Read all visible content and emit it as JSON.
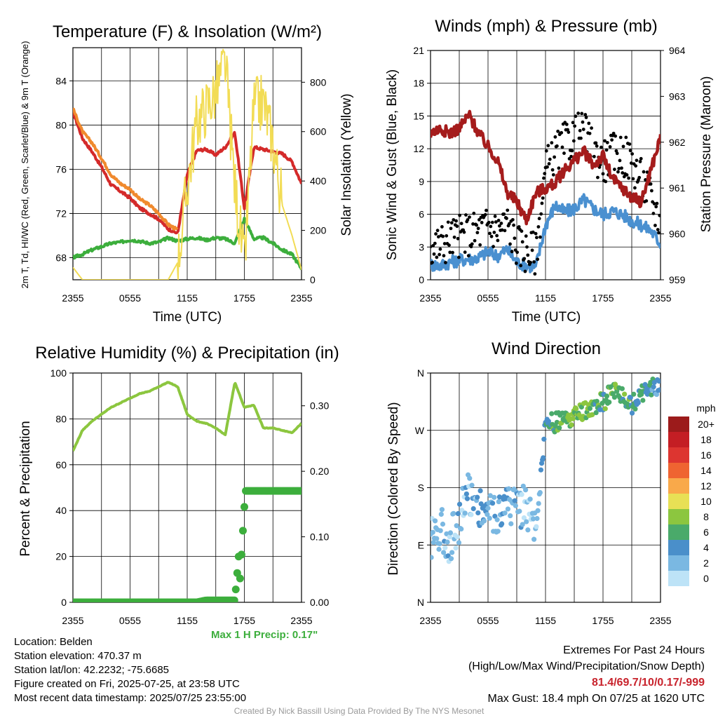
{
  "chart_data": [
    {
      "type": "line",
      "title": "Temperature (F) & Insolation (W/m²)",
      "xlabel": "Time (UTC)",
      "ylabel_left": "2m T, Td, HI/WC (Red, Green, Scarlet/Blue) & 9m T (Orange)",
      "ylabel_right": "Solar Insolation (Yellow)",
      "x_ticks": [
        "2355",
        "0555",
        "1155",
        "1755",
        "2355"
      ],
      "ylim": [
        66,
        87
      ],
      "y_ticks": [
        "68",
        "72",
        "76",
        "80",
        "84"
      ],
      "y2lim": [
        0,
        940
      ],
      "y2_ticks": [
        "0",
        "200",
        "400",
        "600",
        "800"
      ],
      "grid": true,
      "hours": [
        0,
        1,
        2,
        3,
        4,
        5,
        6,
        7,
        8,
        9,
        10,
        11,
        12,
        13,
        14,
        15,
        16,
        17,
        18,
        19,
        20,
        21,
        22,
        23,
        24
      ],
      "series": [
        {
          "color": "#d42a2a",
          "values": [
            81.2,
            78.8,
            77.6,
            76.2,
            74.6,
            74.0,
            73.4,
            72.5,
            72.0,
            71.5,
            70.6,
            70.2,
            75.5,
            77.7,
            77.8,
            77.3,
            78.0,
            79.3,
            72.5,
            78.0,
            77.8,
            77.6,
            77.4,
            76.7,
            74.7
          ]
        },
        {
          "color": "#f08a2e",
          "values": [
            81.5,
            79.4,
            78.4,
            77.0,
            75.5,
            74.7,
            74.2,
            73.3,
            72.8,
            72.0,
            71.0,
            70.5,
            null,
            null,
            null,
            null,
            null,
            null,
            null,
            null,
            null,
            null,
            null,
            null,
            null
          ]
        },
        {
          "color": "#3cae3c",
          "values": [
            68.0,
            68.3,
            68.7,
            69.0,
            69.3,
            69.4,
            69.6,
            69.5,
            69.3,
            69.4,
            69.8,
            69.5,
            69.7,
            69.8,
            69.6,
            69.8,
            69.7,
            69.3,
            71.5,
            69.7,
            69.8,
            69.3,
            68.7,
            68.3,
            67.0
          ]
        },
        {
          "color": "#f2dc55",
          "axis": "right",
          "values": [
            50,
            0,
            0,
            0,
            0,
            0,
            0,
            0,
            0,
            0,
            0,
            70,
            380,
            640,
            700,
            760,
            880,
            380,
            60,
            700,
            720,
            560,
            300,
            180,
            40
          ]
        }
      ]
    },
    {
      "type": "scatter",
      "title": "Winds (mph) & Pressure (mb)",
      "xlabel": "Time (UTC)",
      "ylabel_left": "Sonic Wind & Gust (Blue, Black)",
      "ylabel_right": "Station Pressure (Maroon)",
      "x_ticks": [
        "2355",
        "0555",
        "1155",
        "1755",
        "2355"
      ],
      "ylim": [
        0,
        21
      ],
      "y_ticks": [
        "0",
        "3",
        "6",
        "9",
        "12",
        "15",
        "18",
        "21"
      ],
      "y2lim": [
        959,
        964
      ],
      "y2_ticks": [
        "959",
        "960",
        "961",
        "962",
        "963",
        "964"
      ],
      "grid": true,
      "hours": [
        0,
        1,
        2,
        3,
        4,
        5,
        6,
        7,
        8,
        9,
        10,
        11,
        12,
        13,
        14,
        15,
        16,
        17,
        18,
        19,
        20,
        21,
        22,
        23,
        24
      ],
      "series": [
        {
          "color": "#4a90d0",
          "values": [
            1.4,
            1.3,
            1.6,
            1.8,
            1.9,
            2.0,
            2.6,
            2.2,
            2.8,
            1.6,
            1.3,
            1.2,
            5.0,
            6.8,
            6.2,
            6.5,
            7.3,
            6.5,
            6.0,
            6.3,
            6.0,
            5.4,
            5.0,
            4.5,
            3.3
          ]
        },
        {
          "color": "#000000",
          "values": [
            3.0,
            3.2,
            3.8,
            4.0,
            4.2,
            4.5,
            5.0,
            4.6,
            5.2,
            3.3,
            2.6,
            2.5,
            10.0,
            11.5,
            12.4,
            13.2,
            13.5,
            11.8,
            10.8,
            11.5,
            11.5,
            10.8,
            9.2,
            7.5,
            5.2
          ]
        },
        {
          "color": "#a51c1c",
          "axis": "right",
          "values": [
            962.2,
            962.3,
            962.2,
            962.3,
            962.6,
            962.2,
            961.9,
            961.6,
            960.9,
            960.7,
            960.3,
            960.9,
            961.0,
            961.1,
            961.4,
            961.6,
            961.8,
            961.5,
            961.7,
            961.2,
            961.0,
            960.8,
            960.7,
            961.4,
            962.1
          ]
        }
      ]
    },
    {
      "type": "line",
      "title": "Relative Humidity (%) & Precipitation (in)",
      "ylabel_left": "Percent & Precipitation",
      "x_ticks": [
        "2355",
        "0555",
        "1155",
        "1755",
        "2355"
      ],
      "ylim": [
        0,
        100
      ],
      "y_ticks": [
        "0",
        "20",
        "40",
        "60",
        "80",
        "100"
      ],
      "y2lim": [
        0,
        0.35
      ],
      "y2_ticks": [
        "0.00",
        "0.10",
        "0.20",
        "0.30"
      ],
      "grid": true,
      "hours": [
        0,
        1,
        2,
        3,
        4,
        5,
        6,
        7,
        8,
        9,
        10,
        11,
        12,
        13,
        14,
        15,
        16,
        17,
        18,
        19,
        20,
        21,
        22,
        23,
        24
      ],
      "series": [
        {
          "color": "#8cc63f",
          "values": [
            66,
            75,
            79,
            82,
            85,
            87,
            89,
            91,
            92,
            94,
            96,
            94,
            82,
            79,
            78,
            76,
            73,
            96,
            85,
            86,
            76,
            76,
            75,
            74,
            78
          ]
        },
        {
          "color": "#3cae3c",
          "axis": "right",
          "values": [
            0,
            0,
            0,
            0,
            0,
            0,
            0,
            0,
            0,
            0,
            0,
            0,
            0,
            0,
            0.003,
            0.003,
            0.003,
            0.003,
            0.17,
            0.17,
            0.17,
            0.17,
            0.17,
            0.17,
            0.17
          ]
        }
      ],
      "annotation": "Max 1 H Precip: 0.17\""
    },
    {
      "type": "scatter",
      "title": "Wind Direction",
      "ylabel_left": "Direction (Colored By Speed)",
      "x_ticks": [
        "2355",
        "0555",
        "1155",
        "1755",
        "2355"
      ],
      "y_ticks": [
        "N",
        "E",
        "S",
        "W",
        "N"
      ],
      "ylim": [
        0,
        360
      ],
      "grid": true,
      "legend_title": "mph",
      "legend_placement": "right",
      "legend_labels": [
        "20+",
        "18",
        "16",
        "14",
        "12",
        "10",
        "8",
        "6",
        "4",
        "2",
        "0"
      ],
      "legend_colors": [
        "#9c1b1b",
        "#c41e24",
        "#dd3530",
        "#ef6431",
        "#f9a94a",
        "#e8e055",
        "#8cc63f",
        "#4aaa6a",
        "#4a8fca",
        "#7ab8e2",
        "#bde3f7"
      ],
      "hours": [
        0,
        1,
        2,
        3,
        4,
        5,
        6,
        7,
        8,
        9,
        10,
        11,
        12,
        13,
        14,
        15,
        16,
        17,
        18,
        19,
        20,
        21,
        22,
        23,
        24
      ],
      "series": [
        {
          "name": "",
          "values": [
            100,
            120,
            95,
            130,
            175,
            150,
            145,
            140,
            150,
            150,
            155,
            100,
            280,
            282,
            285,
            290,
            300,
            305,
            315,
            330,
            325,
            310,
            330,
            340,
            340
          ],
          "speeds": [
            1.5,
            1.5,
            1.8,
            1.9,
            2.0,
            2.4,
            2.6,
            2.5,
            3.0,
            2.5,
            1.5,
            1.5,
            5.0,
            6.5,
            6.5,
            7.0,
            7.5,
            6.5,
            6.0,
            6.5,
            6.0,
            5.5,
            5.0,
            4.5,
            3.5
          ]
        }
      ]
    }
  ],
  "info": {
    "location": "Location: Belden",
    "elevation": "Station elevation: 470.37 m",
    "latlon": "Station lat/lon: 42.2232; -75.6685",
    "created": "Figure created on Fri, 2025-07-25, at 23:58 UTC",
    "recent": "Most recent data timestamp: 2025/07/25 23:55:00"
  },
  "extremes": {
    "title": "Extremes For Past 24 Hours",
    "subtitle": "(High/Low/Max Wind/Precipitation/Snow Depth)",
    "values": "81.4/69.7/10/0.17/-999",
    "gust": "Max Gust: 18.4 mph On 07/25 at 1620 UTC"
  },
  "credit": "Created By Nick Bassill Using Data Provided By The NYS Mesonet"
}
